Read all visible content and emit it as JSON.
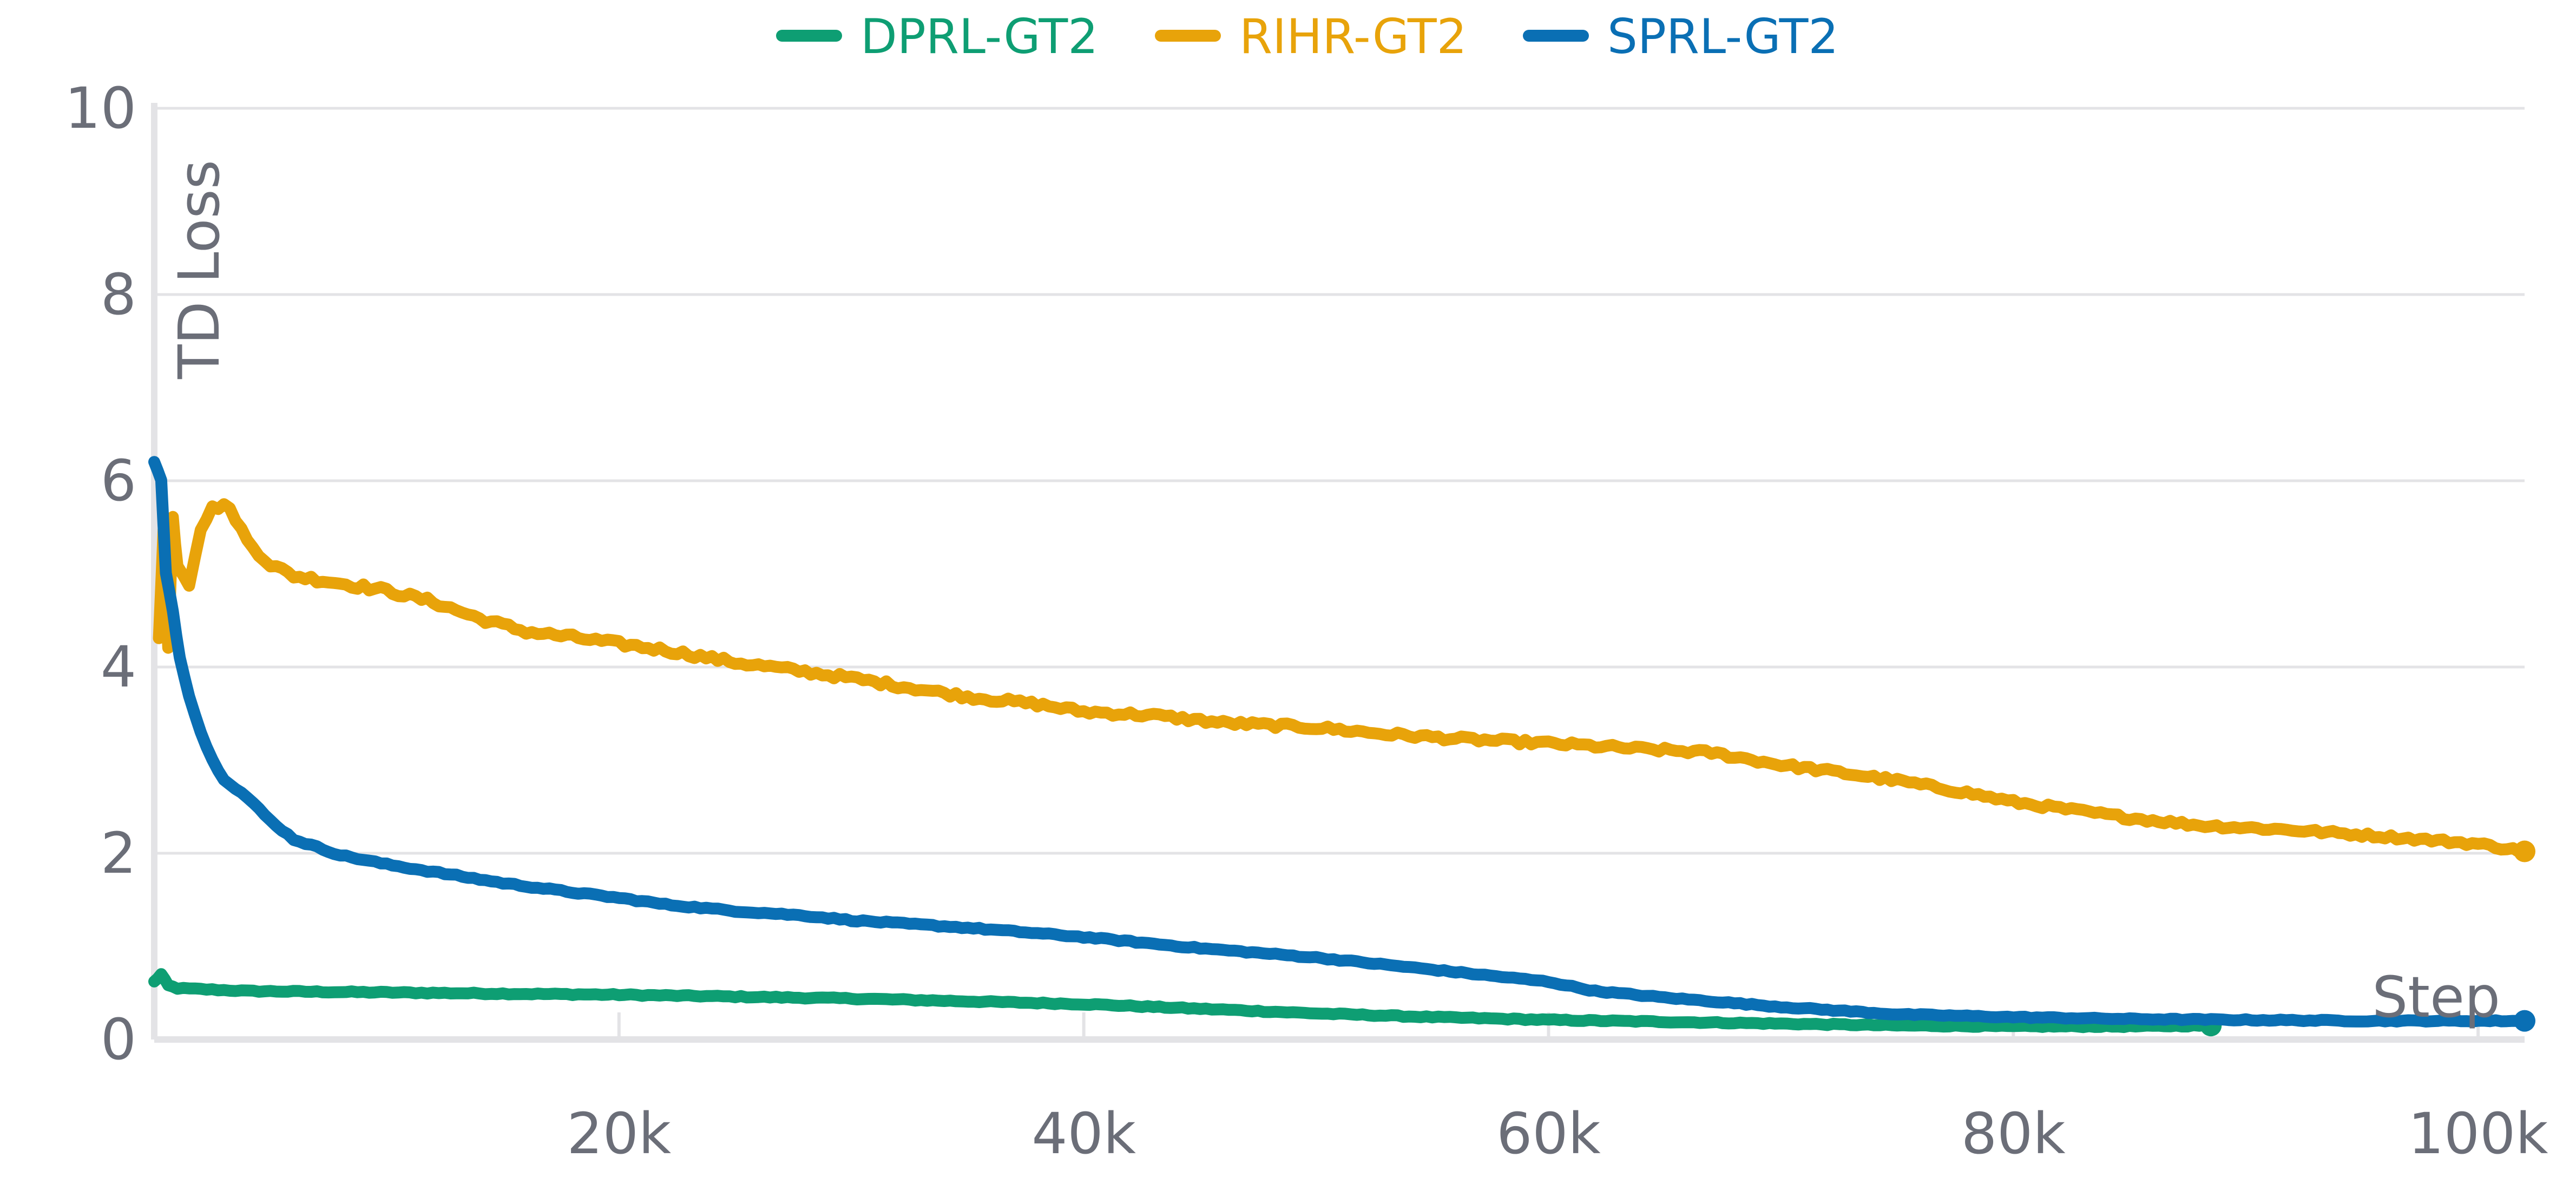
{
  "chart_data": {
    "type": "line",
    "title": "",
    "xlabel": "Step",
    "ylabel": "TD Loss",
    "xlim": [
      0,
      102000
    ],
    "ylim": [
      0,
      10
    ],
    "grid": true,
    "legend_position": "top-center",
    "x_ticks": [
      {
        "value": 20000,
        "label": "20k"
      },
      {
        "value": 40000,
        "label": "40k"
      },
      {
        "value": 60000,
        "label": "60k"
      },
      {
        "value": 80000,
        "label": "80k"
      },
      {
        "value": 100000,
        "label": "100k"
      }
    ],
    "y_ticks": [
      {
        "value": 0,
        "label": "0"
      },
      {
        "value": 2,
        "label": "2"
      },
      {
        "value": 4,
        "label": "4"
      },
      {
        "value": 6,
        "label": "6"
      },
      {
        "value": 8,
        "label": "8"
      },
      {
        "value": 10,
        "label": "10"
      }
    ],
    "series": [
      {
        "name": "DPRL-GT2",
        "color": "#0e9e73",
        "x": [
          0,
          300,
          600,
          1000,
          2000,
          4000,
          8000,
          12000,
          16000,
          20000,
          25000,
          30000,
          35000,
          40000,
          45000,
          50000,
          55000,
          60000,
          65000,
          70000,
          75000,
          80000,
          85000,
          88500
        ],
        "y": [
          0.62,
          0.7,
          0.58,
          0.55,
          0.54,
          0.52,
          0.51,
          0.5,
          0.49,
          0.48,
          0.46,
          0.44,
          0.41,
          0.38,
          0.33,
          0.28,
          0.24,
          0.21,
          0.19,
          0.17,
          0.15,
          0.14,
          0.14,
          0.15
        ]
      },
      {
        "name": "RIHR-GT2",
        "color": "#e8a30a",
        "x": [
          200,
          400,
          600,
          800,
          1000,
          1500,
          2000,
          2500,
          3000,
          3500,
          4000,
          5000,
          6000,
          8000,
          10000,
          12000,
          14000,
          16000,
          18000,
          20000,
          22000,
          25000,
          28000,
          30000,
          32000,
          35000,
          38000,
          40000,
          43000,
          46000,
          50000,
          53000,
          56000,
          60000,
          64000,
          67000,
          70000,
          73000,
          75000,
          78000,
          80000,
          85000,
          88000,
          92000,
          96000,
          100000,
          102000
        ],
        "y": [
          4.3,
          5.5,
          4.2,
          5.6,
          5.1,
          4.9,
          5.5,
          5.7,
          5.75,
          5.6,
          5.35,
          5.1,
          4.98,
          4.9,
          4.82,
          4.7,
          4.52,
          4.38,
          4.32,
          4.25,
          4.18,
          4.05,
          3.95,
          3.88,
          3.8,
          3.68,
          3.6,
          3.52,
          3.48,
          3.4,
          3.35,
          3.28,
          3.23,
          3.18,
          3.12,
          3.08,
          2.95,
          2.85,
          2.78,
          2.65,
          2.55,
          2.38,
          2.3,
          2.25,
          2.18,
          2.1,
          2.02
        ]
      },
      {
        "name": "SPRL-GT2",
        "color": "#0a6fb4",
        "x": [
          0,
          300,
          500,
          800,
          1100,
          1500,
          2000,
          2500,
          3000,
          4000,
          5000,
          6000,
          8000,
          10000,
          12000,
          15000,
          18000,
          20000,
          22000,
          25000,
          28000,
          30000,
          35000,
          40000,
          45000,
          50000,
          55000,
          60000,
          62000,
          65000,
          70000,
          75000,
          80000,
          85000,
          90000,
          95000,
          100000,
          102000
        ],
        "y": [
          6.2,
          6.0,
          5.0,
          4.6,
          4.1,
          3.7,
          3.3,
          3.0,
          2.8,
          2.6,
          2.35,
          2.15,
          1.98,
          1.88,
          1.8,
          1.68,
          1.58,
          1.52,
          1.45,
          1.38,
          1.33,
          1.28,
          1.2,
          1.1,
          0.98,
          0.88,
          0.75,
          0.62,
          0.52,
          0.45,
          0.35,
          0.27,
          0.24,
          0.22,
          0.21,
          0.2,
          0.2,
          0.2
        ]
      }
    ]
  }
}
